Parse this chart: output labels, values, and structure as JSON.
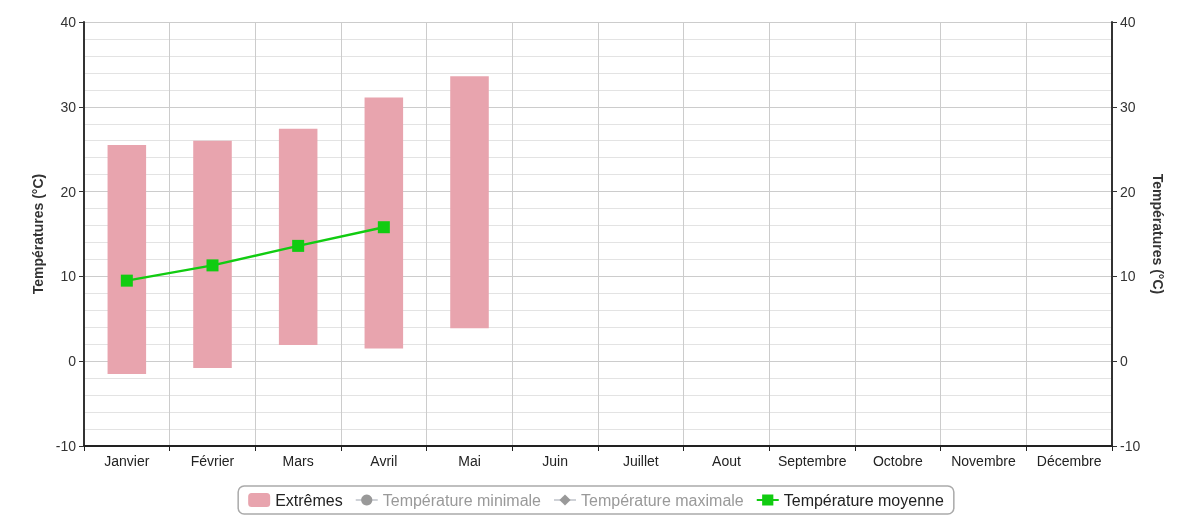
{
  "chart_data": {
    "type": "bar",
    "ylabel": "Températures (°C)",
    "y2label": "Températures (°C)",
    "categories": [
      "Janvier",
      "Février",
      "Mars",
      "Avril",
      "Mai",
      "Juin",
      "Juillet",
      "Aout",
      "Septembre",
      "Octobre",
      "Novembre",
      "Décembre"
    ],
    "series": [
      {
        "name": "Extrêmes",
        "color": "#e8a4ae",
        "base": [
          -1.5,
          -0.8,
          1.9,
          1.5,
          3.9,
          null,
          null,
          null,
          null,
          null,
          null,
          null
        ],
        "values": [
          27.0,
          26.8,
          25.5,
          29.6,
          29.7,
          null,
          null,
          null,
          null,
          null,
          null,
          null
        ]
      },
      {
        "name": "Température minimale",
        "type": "line",
        "color": "#999999",
        "marker": "circle",
        "values": [
          null,
          null,
          null,
          null,
          null,
          null,
          null,
          null,
          null,
          null,
          null,
          null
        ]
      },
      {
        "name": "Température maximale",
        "type": "line",
        "color": "#999999",
        "marker": "diamond",
        "values": [
          null,
          null,
          null,
          null,
          null,
          null,
          null,
          null,
          null,
          null,
          null,
          null
        ]
      },
      {
        "name": "Température moyenne",
        "type": "line",
        "color": "#11cc11",
        "marker": "square",
        "values": [
          9.5,
          11.3,
          13.6,
          15.8,
          null,
          null,
          null,
          null,
          null,
          null,
          null,
          null
        ]
      }
    ],
    "ylim": [
      -10,
      40
    ],
    "yticks": [
      -10,
      0,
      10,
      20,
      30,
      40
    ],
    "y2lim": [
      -10,
      40
    ],
    "y2ticks": [
      -10,
      0,
      10,
      20,
      30,
      40
    ],
    "grid": true,
    "legend": "bottom",
    "line_style": "solid"
  }
}
